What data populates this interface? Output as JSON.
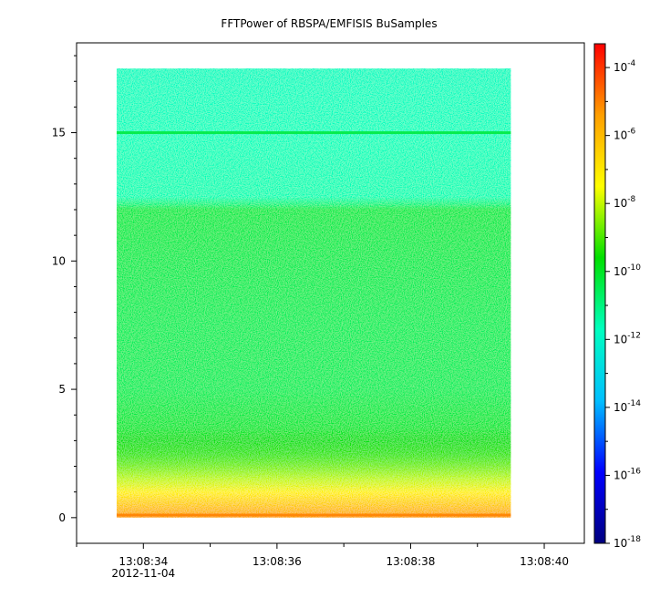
{
  "chart_data": {
    "type": "heatmap",
    "title": "FFTPower of RBSPA/EMFISIS  BuSamples",
    "xlabel": "",
    "ylabel": "",
    "x_ticks": [
      {
        "label": "13:08:34",
        "date_label": "2012-11-04",
        "t": 34
      },
      {
        "label": "13:08:36",
        "t": 36
      },
      {
        "label": "13:08:38",
        "t": 38
      },
      {
        "label": "13:08:40",
        "t": 40
      }
    ],
    "x_range_seconds": [
      33,
      40.6
    ],
    "data_extent_seconds": [
      33.6,
      39.5
    ],
    "y_ticks": [
      0,
      5,
      10,
      15
    ],
    "y_range": [
      -1,
      18.5
    ],
    "data_extent_y": [
      0,
      17.5
    ],
    "colorbar": {
      "scale": "log",
      "range_exponent": [
        -18,
        -3.3
      ],
      "tick_exponents": [
        -18,
        -16,
        -14,
        -12,
        -10,
        -8,
        -6,
        -4
      ],
      "tick_labels": [
        {
          "base": "10",
          "exp": "-18"
        },
        {
          "base": "10",
          "exp": "-16"
        },
        {
          "base": "10",
          "exp": "-14"
        },
        {
          "base": "10",
          "exp": "-12"
        },
        {
          "base": "10",
          "exp": "-10"
        },
        {
          "base": "10",
          "exp": "-8"
        },
        {
          "base": "10",
          "exp": "-6"
        },
        {
          "base": "10",
          "exp": "-4"
        }
      ],
      "colormap": [
        "#00007f",
        "#0000ff",
        "#00bfff",
        "#00ffbf",
        "#00e000",
        "#ffff00",
        "#ff9f00",
        "#ff0000"
      ]
    },
    "power_profile_exponent": [
      {
        "y": 0.0,
        "value": -5.6
      },
      {
        "y": 0.5,
        "value": -6.4
      },
      {
        "y": 1.0,
        "value": -7.2
      },
      {
        "y": 1.5,
        "value": -8.0
      },
      {
        "y": 2.0,
        "value": -8.6
      },
      {
        "y": 2.5,
        "value": -9.2
      },
      {
        "y": 3.0,
        "value": -9.7
      },
      {
        "y": 3.5,
        "value": -10.2
      },
      {
        "y": 5.0,
        "value": -10.6
      },
      {
        "y": 7.5,
        "value": -10.6
      },
      {
        "y": 10.0,
        "value": -10.5
      },
      {
        "y": 12.0,
        "value": -10.4
      },
      {
        "y": 12.2,
        "value": -11.0
      },
      {
        "y": 12.5,
        "value": -11.6
      },
      {
        "y": 15.0,
        "value": -11.7
      },
      {
        "y": 17.5,
        "value": -11.8
      }
    ],
    "line_features": [
      {
        "y": 15.0,
        "value": -10.3
      },
      {
        "y": 0.1,
        "value": -5.0
      }
    ]
  }
}
